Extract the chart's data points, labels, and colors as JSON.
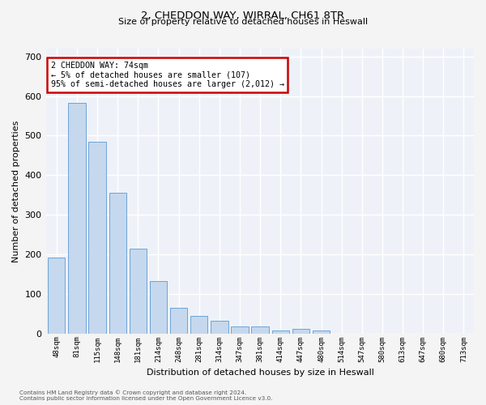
{
  "title1": "2, CHEDDON WAY, WIRRAL, CH61 8TR",
  "title2": "Size of property relative to detached houses in Heswall",
  "xlabel": "Distribution of detached houses by size in Heswall",
  "ylabel": "Number of detached properties",
  "categories": [
    "48sqm",
    "81sqm",
    "115sqm",
    "148sqm",
    "181sqm",
    "214sqm",
    "248sqm",
    "281sqm",
    "314sqm",
    "347sqm",
    "381sqm",
    "414sqm",
    "447sqm",
    "480sqm",
    "514sqm",
    "547sqm",
    "580sqm",
    "613sqm",
    "647sqm",
    "680sqm",
    "713sqm"
  ],
  "values": [
    192,
    583,
    485,
    355,
    215,
    132,
    65,
    45,
    33,
    17,
    17,
    8,
    11,
    8,
    0,
    0,
    0,
    0,
    0,
    0,
    0
  ],
  "bar_color": "#c5d8ed",
  "bar_edge_color": "#5b9bd5",
  "annotation_text": "2 CHEDDON WAY: 74sqm\n← 5% of detached houses are smaller (107)\n95% of semi-detached houses are larger (2,012) →",
  "annotation_box_color": "#ffffff",
  "annotation_box_edge_color": "#cc0000",
  "ylim": [
    0,
    720
  ],
  "yticks": [
    0,
    100,
    200,
    300,
    400,
    500,
    600,
    700
  ],
  "background_color": "#eef2f8",
  "grid_color": "#ffffff",
  "fig_color": "#f4f4f4",
  "footer1": "Contains HM Land Registry data © Crown copyright and database right 2024.",
  "footer2": "Contains public sector information licensed under the Open Government Licence v3.0."
}
